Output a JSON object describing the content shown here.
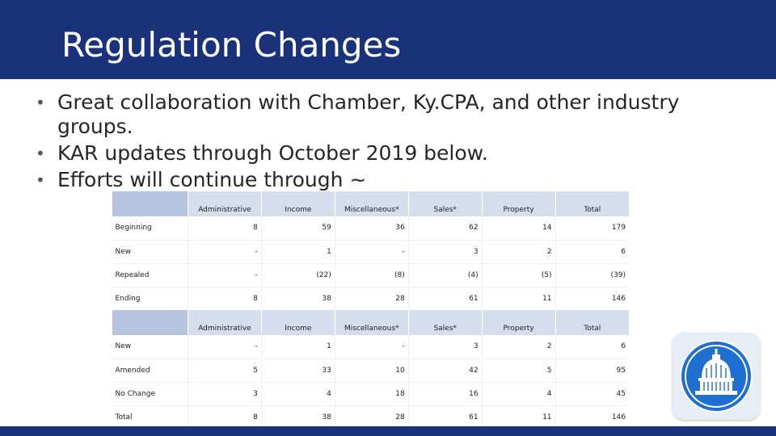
{
  "slide": {
    "title": "Regulation Changes",
    "bullets": [
      "Great collaboration with Chamber, Ky.CPA, and other industry groups.",
      "KAR updates through October 2019 below.",
      "Efforts will continue through ~"
    ]
  },
  "colors": {
    "header": "#19327a",
    "table_header": "#d6deee",
    "table_header_blank": "#b6c4e0",
    "logo": "#1f6fd1"
  },
  "table1": {
    "headers": [
      "Administrative",
      "Income",
      "Miscellaneous*",
      "Sales*",
      "Property",
      "Total"
    ],
    "rows": [
      {
        "label": "Beginning",
        "values": [
          "8",
          "59",
          "36",
          "62",
          "14",
          "179"
        ]
      },
      {
        "label": "New",
        "values": [
          "-",
          "1",
          "-",
          "3",
          "2",
          "6"
        ]
      },
      {
        "label": "Repealed",
        "values": [
          "-",
          "(22)",
          "(8)",
          "(4)",
          "(5)",
          "(39)"
        ]
      },
      {
        "label": "Ending",
        "values": [
          "8",
          "38",
          "28",
          "61",
          "11",
          "146"
        ]
      }
    ]
  },
  "table2": {
    "headers": [
      "Administrative",
      "Income",
      "Miscellaneous*",
      "Sales*",
      "Property",
      "Total"
    ],
    "rows": [
      {
        "label": "New",
        "values": [
          "-",
          "1",
          "-",
          "3",
          "2",
          "6"
        ]
      },
      {
        "label": "Amended",
        "values": [
          "5",
          "33",
          "10",
          "42",
          "5",
          "95"
        ]
      },
      {
        "label": "No Change",
        "values": [
          "3",
          "4",
          "18",
          "16",
          "4",
          "45"
        ]
      },
      {
        "label": "Total",
        "values": [
          "8",
          "38",
          "28",
          "61",
          "11",
          "146"
        ]
      }
    ]
  },
  "logo_icon": "capitol-dome-icon"
}
